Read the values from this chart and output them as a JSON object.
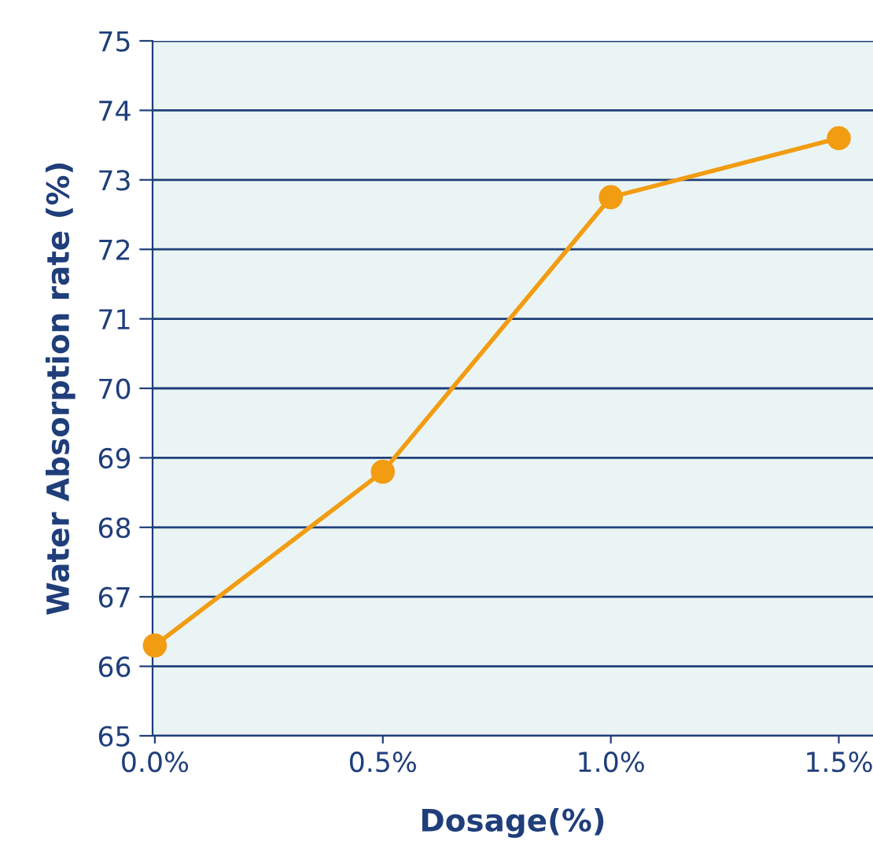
{
  "chart_data": {
    "type": "line",
    "xlabel": "Dosage(%)",
    "ylabel": "Water Absorption rate (%)",
    "categories": [
      "0.0%",
      "0.5%",
      "1.0%",
      "1.5%"
    ],
    "series": [
      {
        "color": "#f29c11",
        "values": [
          66.3,
          68.8,
          72.75,
          73.6
        ]
      }
    ],
    "ylim": [
      65,
      75
    ],
    "yticks": [
      65,
      66,
      67,
      68,
      69,
      70,
      71,
      72,
      73,
      74,
      75
    ],
    "grid": "y",
    "marker": "circle",
    "line_style": "solid",
    "legend": false
  }
}
